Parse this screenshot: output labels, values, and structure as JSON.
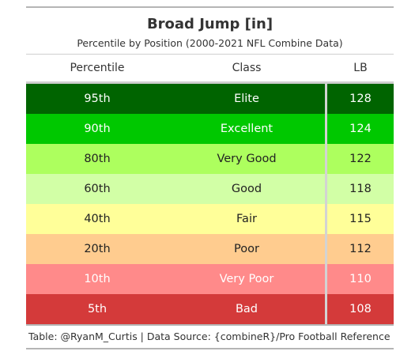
{
  "title": "Broad Jump [in]",
  "subtitle": "Percentile by Position (2000-2021 NFL Combine Data)",
  "columns": {
    "percentile": "Percentile",
    "class": "Class",
    "position": "LB"
  },
  "source": "Table: @RyanM_Curtis | Data Source: {combineR}/Pro Football Reference",
  "chart_data": {
    "type": "table",
    "title": "Broad Jump [in]",
    "subtitle": "Percentile by Position (2000-2021 NFL Combine Data)",
    "columns": [
      "Percentile",
      "Class",
      "LB"
    ],
    "rows": [
      {
        "percentile": "95th",
        "class": "Elite",
        "value": 128,
        "bg": "#006400",
        "fg": "#ffffff"
      },
      {
        "percentile": "90th",
        "class": "Excellent",
        "value": 124,
        "bg": "#00c800",
        "fg": "#ffffff"
      },
      {
        "percentile": "80th",
        "class": "Very Good",
        "value": 122,
        "bg": "#adff5e",
        "fg": "#222222"
      },
      {
        "percentile": "60th",
        "class": "Good",
        "value": 118,
        "bg": "#d2ffa6",
        "fg": "#222222"
      },
      {
        "percentile": "40th",
        "class": "Fair",
        "value": 115,
        "bg": "#ffff99",
        "fg": "#222222"
      },
      {
        "percentile": "20th",
        "class": "Poor",
        "value": 112,
        "bg": "#ffcc8f",
        "fg": "#222222"
      },
      {
        "percentile": "10th",
        "class": "Very Poor",
        "value": 110,
        "bg": "#ff8a8a",
        "fg": "#ffffff"
      },
      {
        "percentile": "5th",
        "class": "Bad",
        "value": 108,
        "bg": "#d43a3a",
        "fg": "#ffffff"
      }
    ]
  }
}
